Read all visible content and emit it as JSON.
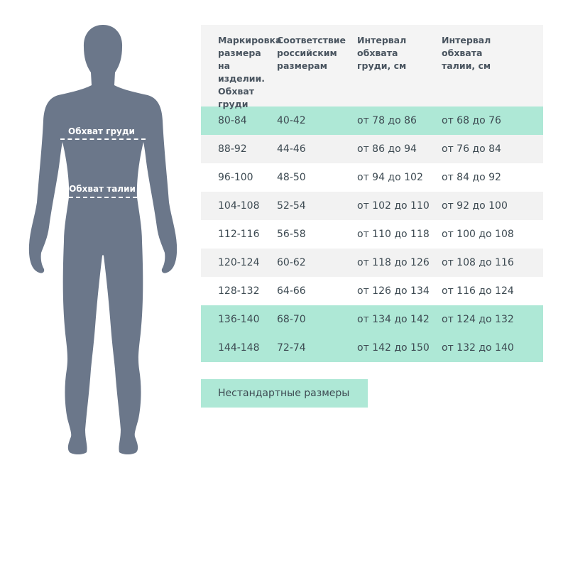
{
  "figure": {
    "chest_label": "Обхват груди",
    "waist_label": "Обхват талии",
    "color": "#6b778a"
  },
  "table": {
    "headers": [
      "Маркировка\nразмера\nна изделии.\nОбхват\nгруди",
      "Соответствие\nроссийским\nразмерам",
      "Интервал\nобхвата\nгруди, см",
      "Интервал\nобхвата\nталии, см"
    ],
    "rows": [
      {
        "cells": [
          "80-84",
          "40-42",
          "от 78 до 86",
          "от 68 до 76"
        ],
        "bg": "#aee8d6"
      },
      {
        "cells": [
          "88-92",
          "44-46",
          "от 86 до 94",
          "от 76 до 84"
        ],
        "bg": "#f2f2f2"
      },
      {
        "cells": [
          "96-100",
          "48-50",
          "от 94 до 102",
          "от 84 до 92"
        ],
        "bg": "#ffffff"
      },
      {
        "cells": [
          "104-108",
          "52-54",
          "от 102 до 110",
          "от 92 до 100"
        ],
        "bg": "#f2f2f2"
      },
      {
        "cells": [
          "112-116",
          "56-58",
          "от 110 до 118",
          "от 100 до 108"
        ],
        "bg": "#ffffff"
      },
      {
        "cells": [
          "120-124",
          "60-62",
          "от 118 до 126",
          "от 108 до 116"
        ],
        "bg": "#f2f2f2"
      },
      {
        "cells": [
          "128-132",
          "64-66",
          "от 126 до 134",
          "от 116 до 124"
        ],
        "bg": "#ffffff"
      },
      {
        "cells": [
          "136-140",
          "68-70",
          "от 134 до 142",
          "от 124 до 132"
        ],
        "bg": "#aee8d6"
      },
      {
        "cells": [
          "144-148",
          "72-74",
          "от 142 до 150",
          "от 132 до 140"
        ],
        "bg": "#aee8d6"
      }
    ]
  },
  "nonstandard_button": "Нестандартные размеры",
  "colors": {
    "accent": "#aee8d6",
    "header_bg": "#f4f4f4"
  }
}
